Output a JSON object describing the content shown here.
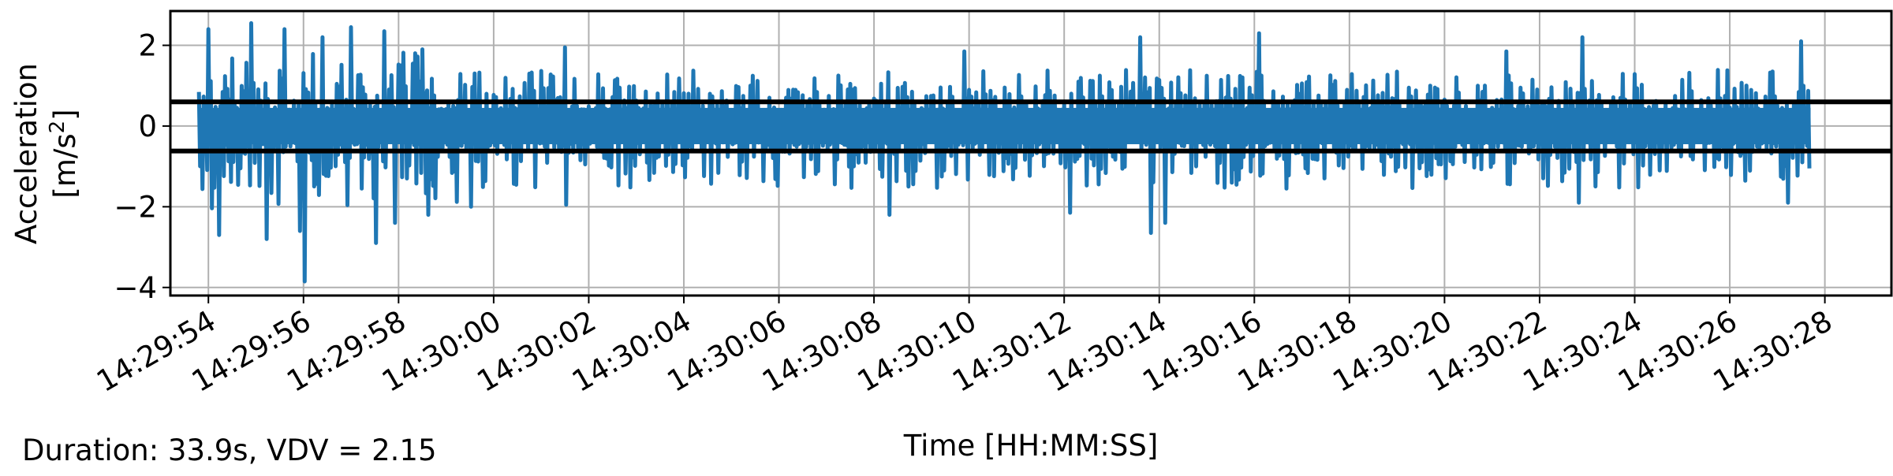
{
  "chart_data": {
    "type": "line",
    "title": "",
    "xlabel": "Time [HH:MM:SS]",
    "ylabel_line1": "Acceleration",
    "ylabel_line2_prefix": "[m/s",
    "ylabel_line2_sup": "2",
    "ylabel_line2_suffix": "]",
    "x_range": [
      "14:29:53.2",
      "14:30:29.4"
    ],
    "ylim": [
      -4.2,
      2.85
    ],
    "x_ticks": [
      "14:29:54",
      "14:29:56",
      "14:29:58",
      "14:30:00",
      "14:30:02",
      "14:30:04",
      "14:30:06",
      "14:30:08",
      "14:30:10",
      "14:30:12",
      "14:30:14",
      "14:30:16",
      "14:30:18",
      "14:30:20",
      "14:30:22",
      "14:30:24",
      "14:30:26",
      "14:30:28"
    ],
    "y_ticks": [
      2,
      0,
      -2,
      -4
    ],
    "y_tick_labels": [
      "2",
      "0",
      "−2",
      "−4"
    ],
    "grid": true,
    "series": [
      {
        "color": "#1f77b4",
        "start": "14:29:53.8",
        "end": "14:30:27.7",
        "peaks": [
          {
            "t": "14:29:54.0",
            "v": 2.4
          },
          {
            "t": "14:29:54.9",
            "v": 2.55
          },
          {
            "t": "14:29:55.6",
            "v": 2.4
          },
          {
            "t": "14:29:56.4",
            "v": 2.2
          },
          {
            "t": "14:29:57.0",
            "v": 2.45
          },
          {
            "t": "14:29:57.7",
            "v": 2.35
          },
          {
            "t": "14:29:58.5",
            "v": 1.9
          },
          {
            "t": "14:30:01.5",
            "v": 1.95
          },
          {
            "t": "14:30:09.9",
            "v": 1.85
          },
          {
            "t": "14:30:13.6",
            "v": 2.2
          },
          {
            "t": "14:30:16.1",
            "v": 2.3
          },
          {
            "t": "14:30:21.3",
            "v": 1.85
          },
          {
            "t": "14:30:22.9",
            "v": 2.2
          },
          {
            "t": "14:30:27.5",
            "v": 2.1
          }
        ],
        "troughs": [
          {
            "t": "14:29:54.2",
            "v": -2.7
          },
          {
            "t": "14:29:55.2",
            "v": -2.8
          },
          {
            "t": "14:29:55.9",
            "v": -2.6
          },
          {
            "t": "14:29:56.0",
            "v": -3.85
          },
          {
            "t": "14:29:57.5",
            "v": -2.9
          },
          {
            "t": "14:29:57.9",
            "v": -2.4
          },
          {
            "t": "14:29:58.6",
            "v": -2.2
          },
          {
            "t": "14:29:59.5",
            "v": -2.0
          },
          {
            "t": "14:30:01.5",
            "v": -1.95
          },
          {
            "t": "14:30:08.3",
            "v": -2.2
          },
          {
            "t": "14:30:12.1",
            "v": -2.15
          },
          {
            "t": "14:30:13.8",
            "v": -2.65
          },
          {
            "t": "14:30:14.1",
            "v": -2.4
          },
          {
            "t": "14:30:22.8",
            "v": -1.9
          },
          {
            "t": "14:30:27.2",
            "v": -1.9
          }
        ]
      }
    ],
    "hlines": [
      {
        "y": 0.6,
        "color": "#000000"
      },
      {
        "y": -0.62,
        "color": "#000000"
      }
    ]
  },
  "footer_text": "Duration: 33.9s, VDV = 2.15"
}
